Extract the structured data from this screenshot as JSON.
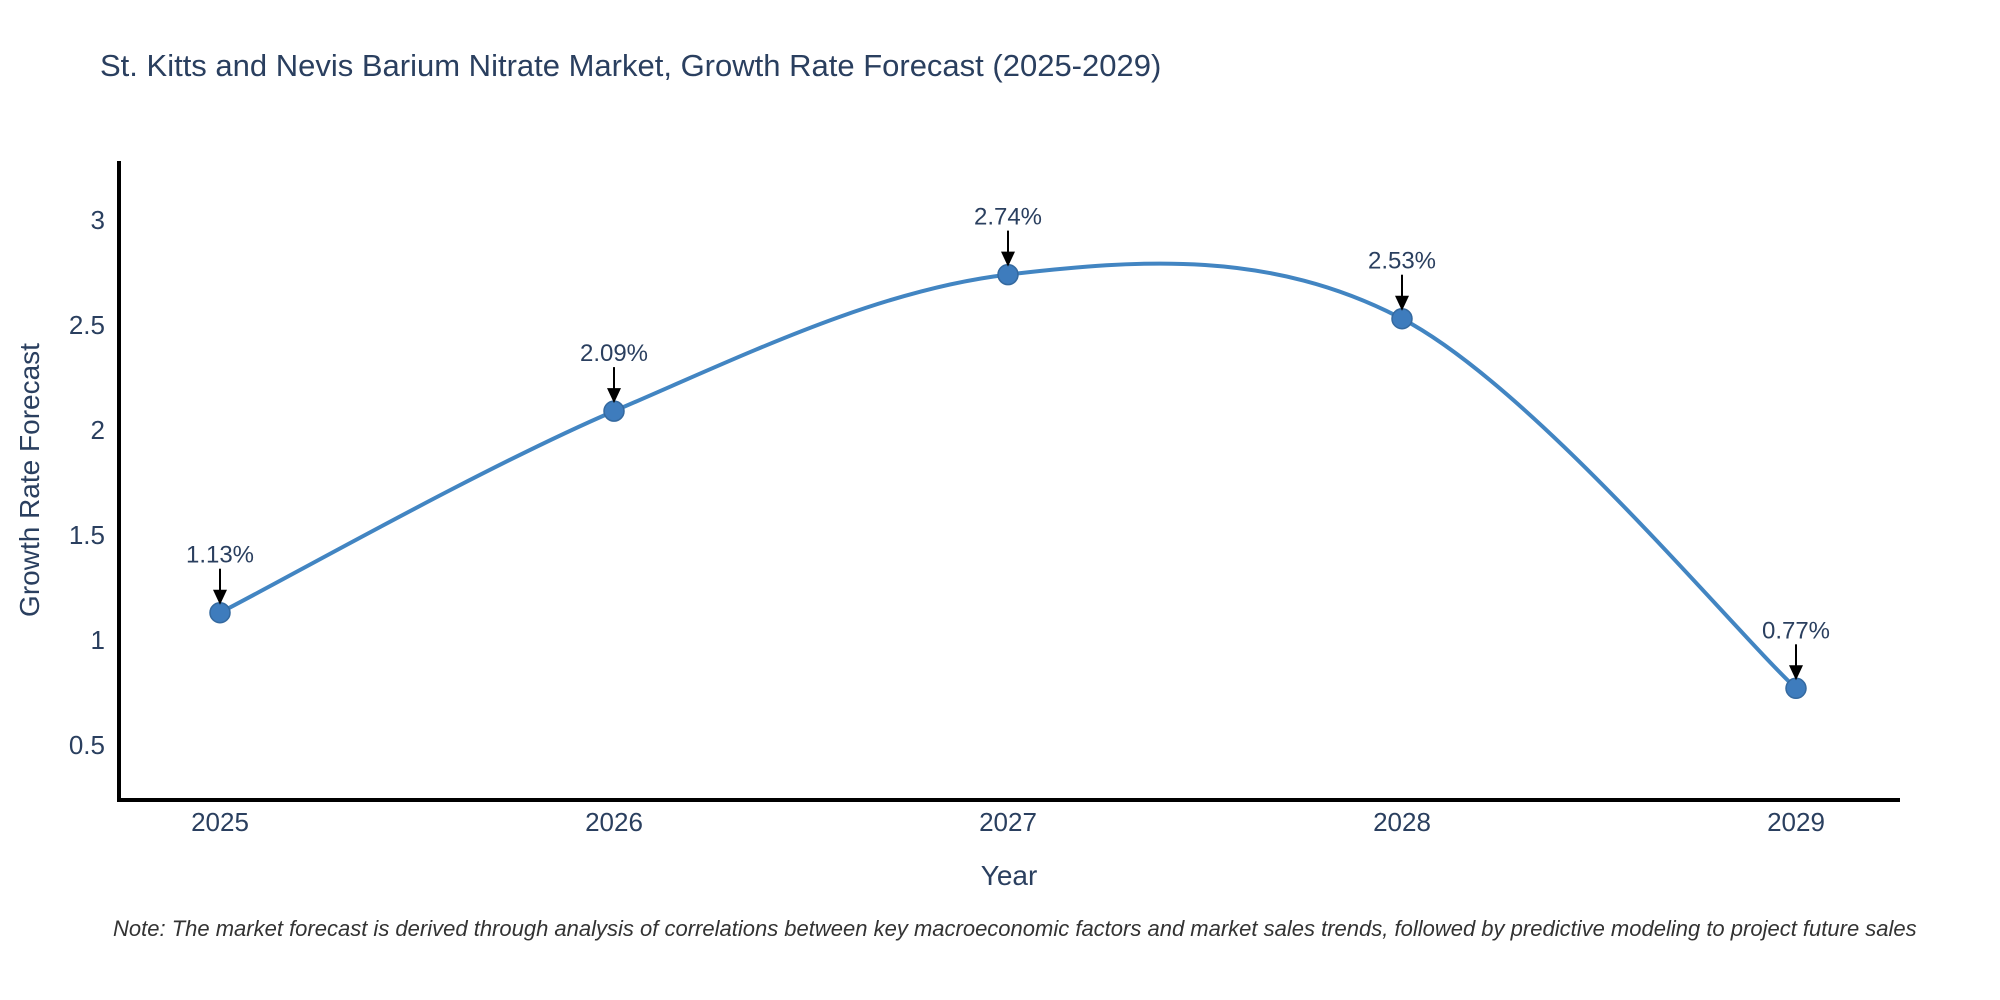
{
  "title": "St. Kitts and Nevis Barium Nitrate Market, Growth Rate Forecast (2025-2029)",
  "note": "Note: The market forecast is derived through analysis of correlations between key macroeconomic factors and market sales trends, followed by predictive modeling to project future sales",
  "chart_data": {
    "type": "line",
    "title": "St. Kitts and Nevis Barium Nitrate Market, Growth Rate Forecast (2025-2029)",
    "xlabel": "Year",
    "ylabel": "Growth Rate Forecast",
    "x": [
      2025,
      2026,
      2027,
      2028,
      2029
    ],
    "y": [
      1.13,
      2.09,
      2.74,
      2.53,
      0.77
    ],
    "point_labels": [
      "1.13%",
      "2.09%",
      "2.74%",
      "2.53%",
      "0.77%"
    ],
    "yticks": [
      0.5,
      1,
      1.5,
      2,
      2.5,
      3
    ],
    "ylim": [
      0.24,
      3.28
    ],
    "line_shape": "spline",
    "grid": false,
    "legend": "none",
    "colors": {
      "line": "#4285c2",
      "marker": "#3e7cbd",
      "marker_edge": "#34699f",
      "axis": "#000000",
      "text": "#2a3f5f",
      "annotation_arrow": "#000000",
      "background": "#ffffff"
    }
  }
}
